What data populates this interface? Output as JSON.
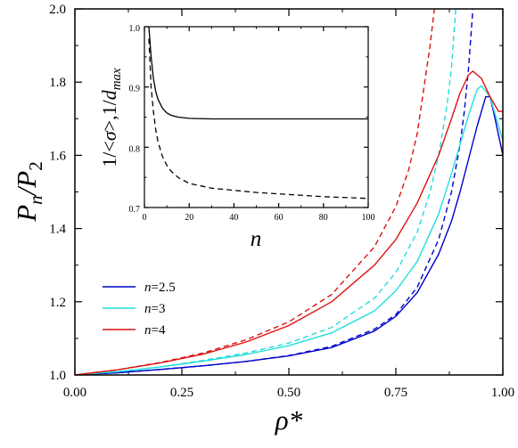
{
  "chart_data": [
    {
      "type": "line",
      "panel": "main",
      "xlabel": "ρ*",
      "ylabel_parts": [
        "P",
        "n",
        "/P",
        "2"
      ],
      "xlim": [
        0,
        1
      ],
      "ylim": [
        1.0,
        2.0
      ],
      "xticks": [
        "0.00",
        "0.25",
        "0.50",
        "0.75",
        "1.00"
      ],
      "yticks": [
        "1.0",
        "1.2",
        "1.4",
        "1.6",
        "1.8",
        "2.0"
      ],
      "legend": {
        "placement": "center-left",
        "entries": [
          {
            "prefix": "n",
            "suffix": "=2.5",
            "color": "#0000cc"
          },
          {
            "prefix": "n",
            "suffix": "=3",
            "color": "#22dddd"
          },
          {
            "prefix": "n",
            "suffix": "=4",
            "color": "#dd1111"
          }
        ]
      },
      "series": [
        {
          "name": "n=2.5",
          "style": "solid",
          "color": "#0000cc",
          "x": [
            0.0,
            0.1,
            0.2,
            0.3,
            0.4,
            0.5,
            0.6,
            0.7,
            0.75,
            0.8,
            0.85,
            0.88,
            0.9,
            0.92,
            0.94,
            0.96,
            0.97,
            0.98,
            1.0
          ],
          "y": [
            1.0,
            1.006,
            1.015,
            1.025,
            1.037,
            1.052,
            1.075,
            1.12,
            1.16,
            1.225,
            1.33,
            1.42,
            1.5,
            1.59,
            1.68,
            1.76,
            1.76,
            1.71,
            1.6
          ]
        },
        {
          "name": "n=2.5 dashed",
          "style": "dashed",
          "color": "#0000cc",
          "x": [
            0.0,
            0.1,
            0.2,
            0.3,
            0.4,
            0.5,
            0.6,
            0.7,
            0.75,
            0.8,
            0.85,
            0.88,
            0.9,
            0.91,
            0.92,
            0.93
          ],
          "y": [
            1.0,
            1.006,
            1.015,
            1.025,
            1.037,
            1.053,
            1.078,
            1.125,
            1.165,
            1.24,
            1.37,
            1.5,
            1.63,
            1.72,
            1.84,
            2.0
          ]
        },
        {
          "name": "n=3",
          "style": "solid",
          "color": "#22dddd",
          "x": [
            0.0,
            0.1,
            0.2,
            0.3,
            0.4,
            0.5,
            0.6,
            0.7,
            0.75,
            0.8,
            0.85,
            0.88,
            0.9,
            0.92,
            0.94,
            0.95,
            0.97,
            0.99,
            1.0
          ],
          "y": [
            1.0,
            1.009,
            1.022,
            1.038,
            1.056,
            1.08,
            1.115,
            1.175,
            1.23,
            1.31,
            1.44,
            1.55,
            1.63,
            1.71,
            1.78,
            1.79,
            1.76,
            1.68,
            1.64
          ]
        },
        {
          "name": "n=3 dashed",
          "style": "dashed",
          "color": "#22dddd",
          "x": [
            0.0,
            0.1,
            0.2,
            0.3,
            0.4,
            0.5,
            0.6,
            0.7,
            0.75,
            0.8,
            0.83,
            0.85,
            0.87,
            0.88,
            0.89
          ],
          "y": [
            1.0,
            1.009,
            1.022,
            1.04,
            1.06,
            1.087,
            1.13,
            1.21,
            1.28,
            1.39,
            1.5,
            1.6,
            1.74,
            1.84,
            2.0
          ]
        },
        {
          "name": "n=4",
          "style": "solid",
          "color": "#dd1111",
          "x": [
            0.0,
            0.1,
            0.2,
            0.3,
            0.4,
            0.5,
            0.6,
            0.7,
            0.75,
            0.8,
            0.85,
            0.88,
            0.9,
            0.92,
            0.93,
            0.95,
            0.97,
            0.99,
            1.0
          ],
          "y": [
            1.0,
            1.014,
            1.033,
            1.057,
            1.09,
            1.135,
            1.2,
            1.3,
            1.37,
            1.47,
            1.6,
            1.7,
            1.77,
            1.82,
            1.83,
            1.81,
            1.76,
            1.72,
            1.72
          ]
        },
        {
          "name": "n=4 dashed",
          "style": "dashed",
          "color": "#dd1111",
          "x": [
            0.0,
            0.1,
            0.2,
            0.3,
            0.4,
            0.5,
            0.6,
            0.7,
            0.75,
            0.78,
            0.8,
            0.82,
            0.83,
            0.84
          ],
          "y": [
            1.0,
            1.014,
            1.034,
            1.06,
            1.096,
            1.145,
            1.22,
            1.35,
            1.46,
            1.56,
            1.66,
            1.82,
            1.9,
            2.0
          ]
        }
      ]
    },
    {
      "type": "line",
      "panel": "inset",
      "xlabel": "n",
      "ylabel_parts": [
        "1/<",
        "σ",
        ">,1/",
        "d",
        "max"
      ],
      "xlim": [
        0,
        100
      ],
      "ylim": [
        0.7,
        1.0
      ],
      "xticks": [
        "0",
        "20",
        "40",
        "60",
        "80",
        "100"
      ],
      "yticks": [
        "0.7",
        "0.8",
        "0.9",
        "1.0"
      ],
      "series": [
        {
          "name": "1/<σ>",
          "style": "solid",
          "color": "#000000",
          "x": [
            2,
            3,
            4,
            5,
            6,
            8,
            10,
            12,
            15,
            20,
            30,
            50,
            100
          ],
          "y": [
            1.0,
            0.95,
            0.915,
            0.893,
            0.88,
            0.865,
            0.857,
            0.853,
            0.85,
            0.848,
            0.847,
            0.847,
            0.847
          ]
        },
        {
          "name": "1/d_max",
          "style": "dashed",
          "color": "#000000",
          "x": [
            2,
            3,
            4,
            5,
            6,
            8,
            10,
            12,
            15,
            20,
            30,
            50,
            80,
            100
          ],
          "y": [
            0.98,
            0.9,
            0.86,
            0.83,
            0.81,
            0.785,
            0.77,
            0.76,
            0.75,
            0.74,
            0.732,
            0.725,
            0.718,
            0.715
          ]
        }
      ]
    }
  ]
}
